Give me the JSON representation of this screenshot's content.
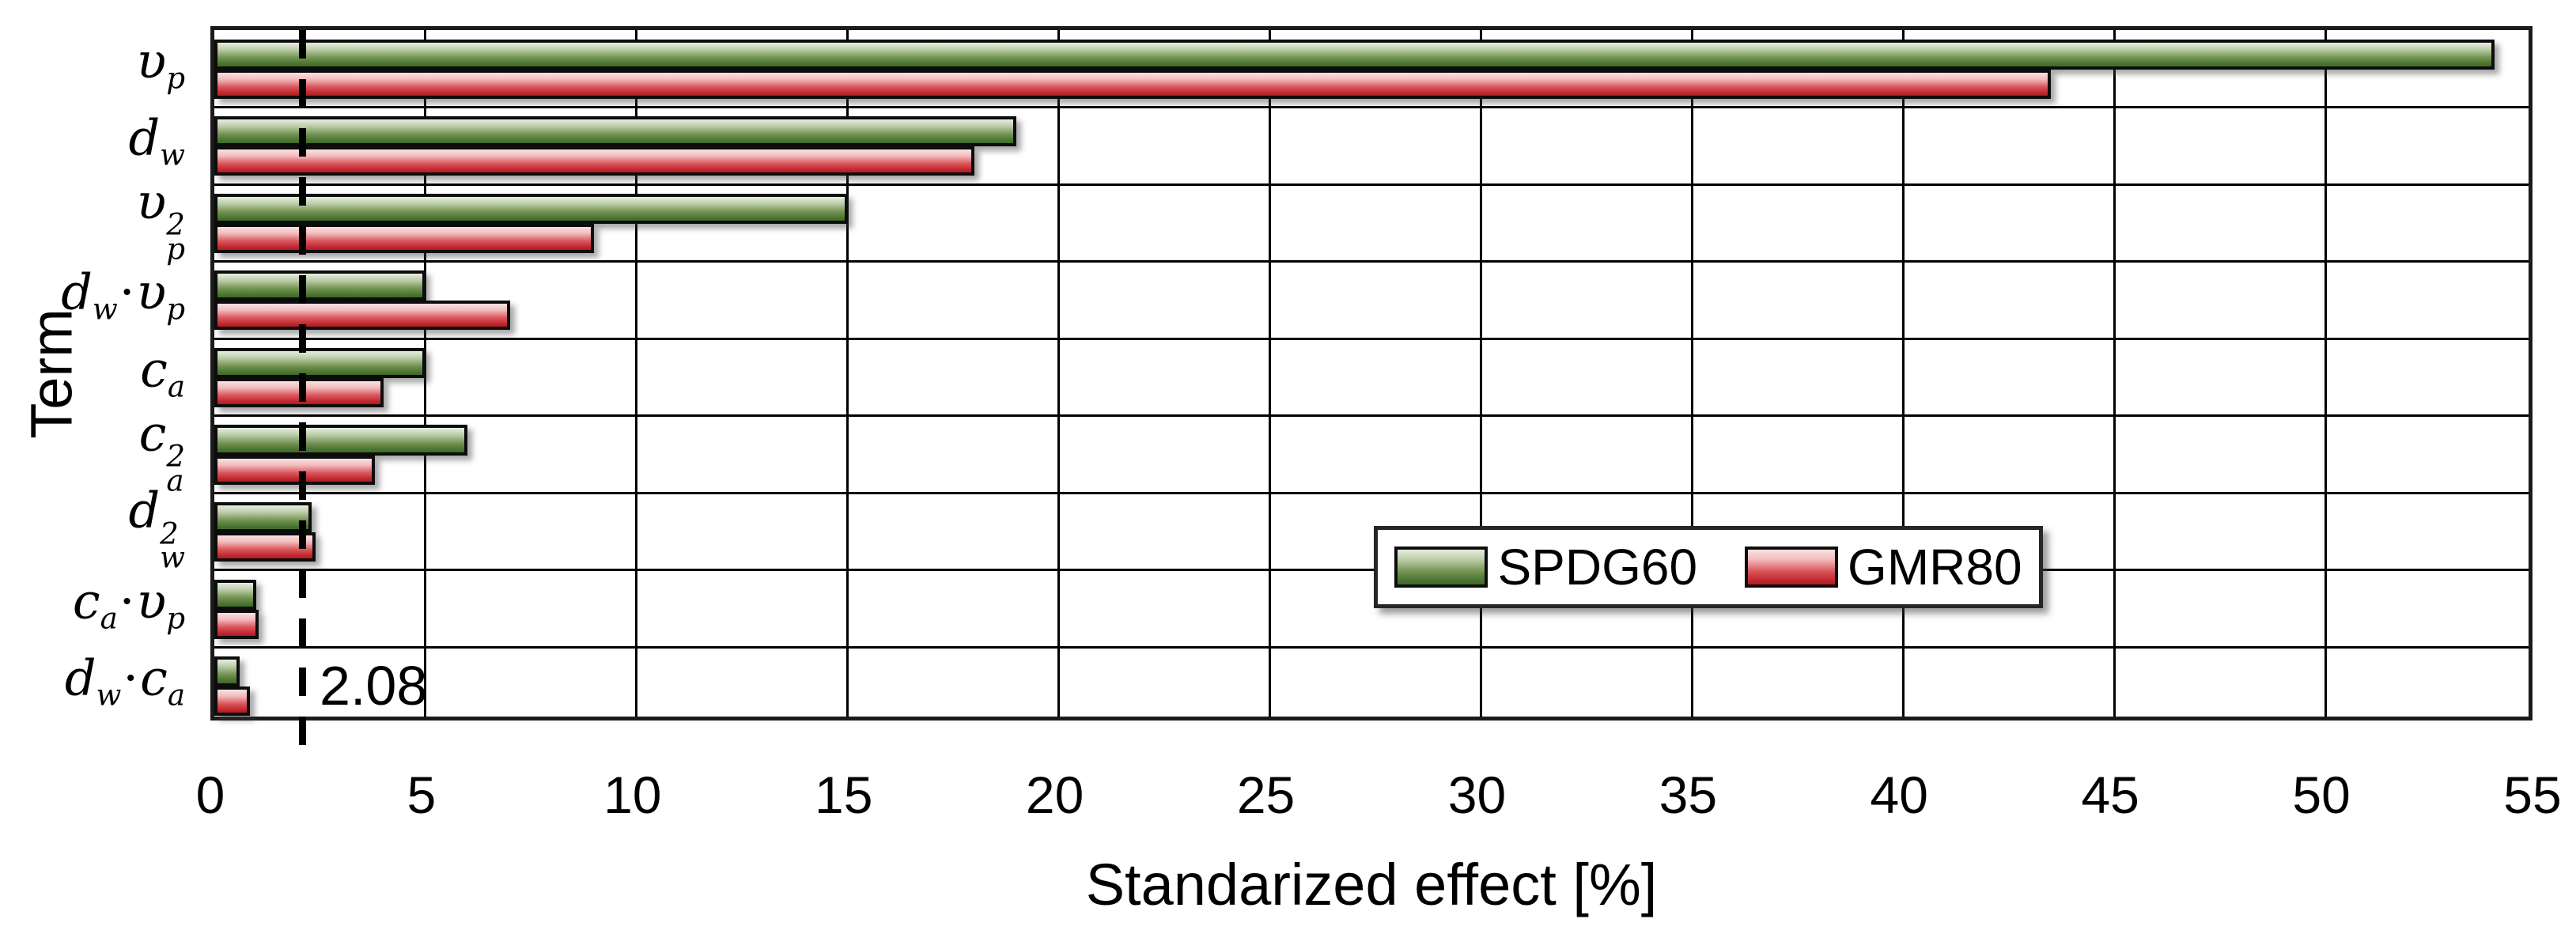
{
  "figure": {
    "background": "#ffffff"
  },
  "chart_data": {
    "type": "bar",
    "orientation": "horizontal",
    "title": "",
    "xlabel": "Standarized effect [%]",
    "ylabel": "Term",
    "xlim": [
      0,
      55
    ],
    "xticks": [
      "0",
      "5",
      "10",
      "15",
      "20",
      "25",
      "30",
      "35",
      "40",
      "45",
      "50",
      "55"
    ],
    "grid": true,
    "legend_position": "inside-center-right",
    "threshold": {
      "value": 2.08,
      "label": "2.08",
      "line_style": "dashed",
      "line_color": "#000000"
    },
    "categories": [
      "υp",
      "dw",
      "υp2",
      "dw·υp",
      "ca",
      "ca2",
      "dw2",
      "ca·υp",
      "dw·ca"
    ],
    "category_segments": [
      [
        {
          "t": "υ"
        },
        {
          "t": "p",
          "m": "sub"
        }
      ],
      [
        {
          "t": "d"
        },
        {
          "t": "w",
          "m": "sub"
        }
      ],
      [
        {
          "t": "υ"
        },
        {
          "m": "stack",
          "sup": "2",
          "sub": "p"
        }
      ],
      [
        {
          "t": "d"
        },
        {
          "t": "w",
          "m": "sub"
        },
        {
          "t": "·",
          "m": "dot"
        },
        {
          "t": "υ"
        },
        {
          "t": "p",
          "m": "sub"
        }
      ],
      [
        {
          "t": "c"
        },
        {
          "t": "a",
          "m": "sub"
        }
      ],
      [
        {
          "t": "c"
        },
        {
          "m": "stack",
          "sup": "2",
          "sub": "a"
        }
      ],
      [
        {
          "t": "d"
        },
        {
          "m": "stack",
          "sup": "2",
          "sub": "w"
        }
      ],
      [
        {
          "t": "c"
        },
        {
          "t": "a",
          "m": "sub"
        },
        {
          "t": "·",
          "m": "dot"
        },
        {
          "t": "υ"
        },
        {
          "t": "p",
          "m": "sub"
        }
      ],
      [
        {
          "t": "d"
        },
        {
          "t": "w",
          "m": "sub"
        },
        {
          "t": "·",
          "m": "dot"
        },
        {
          "t": "c"
        },
        {
          "t": "a",
          "m": "sub"
        }
      ]
    ],
    "series": [
      {
        "name": "SPDG60",
        "color": "#4b7431",
        "gradient": [
          "#e7eedf",
          "#bcceaa",
          "#759454",
          "#4b7431",
          "#416928"
        ],
        "values": [
          54,
          19,
          15,
          5,
          5,
          6,
          2.3,
          1.0,
          0.6
        ]
      },
      {
        "name": "GMR80",
        "color": "#c1272d",
        "gradient": [
          "#f9e2e2",
          "#f2bcbd",
          "#d9555c",
          "#c1272d",
          "#ab1f24"
        ],
        "values": [
          43.5,
          18,
          9,
          7,
          4,
          3.8,
          2.4,
          1.05,
          0.85
        ]
      }
    ]
  }
}
